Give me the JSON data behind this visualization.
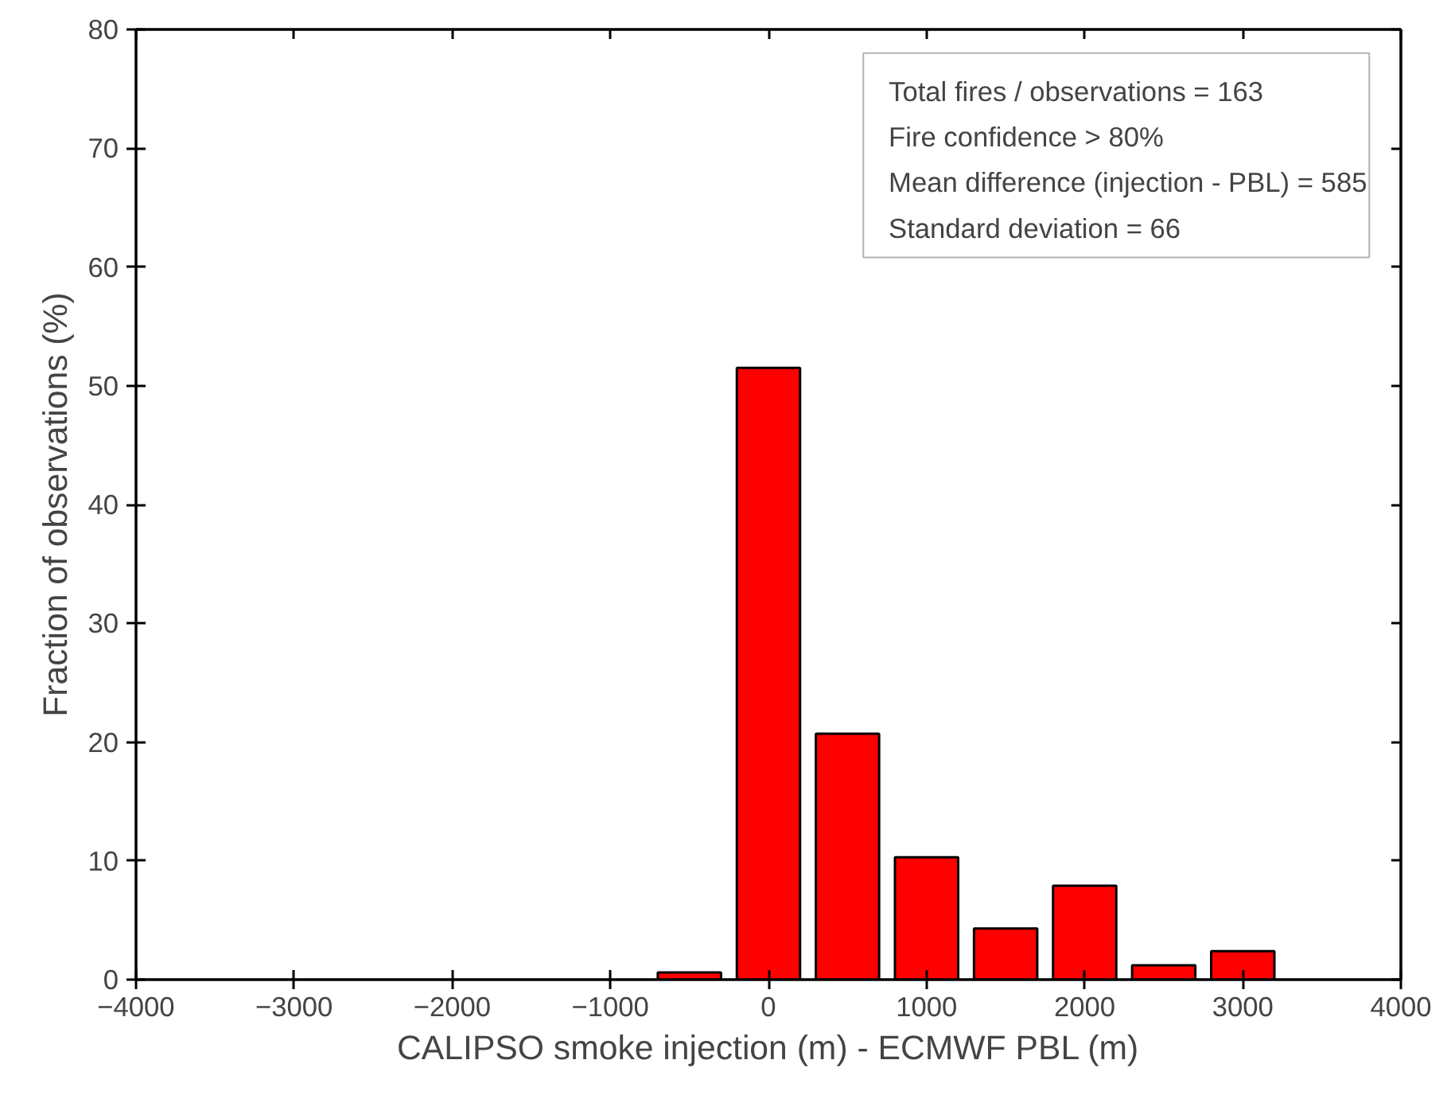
{
  "chart_data": {
    "type": "bar",
    "xlabel": "CALIPSO smoke injection (m) - ECMWF PBL (m)",
    "ylabel": "Fraction of observations (%)",
    "x": [
      -500,
      0,
      500,
      1000,
      1500,
      2000,
      2500,
      3000
    ],
    "values": [
      0.6,
      51.5,
      20.7,
      10.3,
      4.3,
      7.9,
      1.2,
      2.4
    ],
    "color": "#ff0000",
    "xlim": [
      -4000,
      4000
    ],
    "xticks": [
      -4000,
      -3000,
      -2000,
      -1000,
      0,
      1000,
      2000,
      3000,
      4000
    ],
    "ylim": [
      0,
      80
    ],
    "yticks": [
      0,
      10,
      20,
      30,
      40,
      50,
      60,
      70,
      80
    ],
    "grid": false,
    "annotations": [
      "Total fires / observations = 163",
      "Fire confidence > 80%",
      "Mean difference (injection - PBL) = 585",
      "Standard deviation = 66"
    ]
  }
}
